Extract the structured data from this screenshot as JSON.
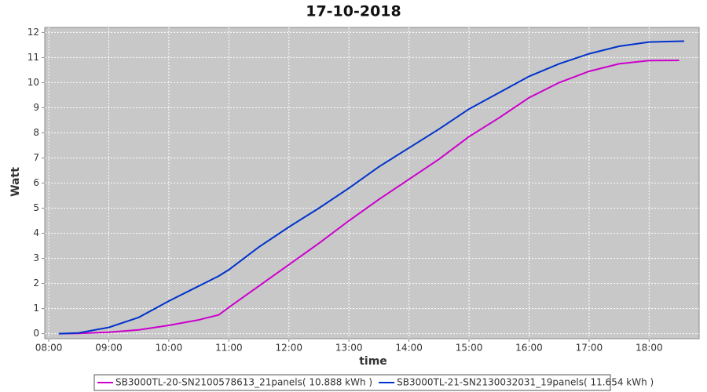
{
  "chart_data": {
    "type": "line",
    "title": "17-10-2018",
    "x_label": "time",
    "y_label": "Watt",
    "x": [
      "08:10",
      "08:30",
      "09:00",
      "09:30",
      "10:00",
      "10:30",
      "10:50",
      "11:00",
      "11:30",
      "12:00",
      "12:30",
      "13:00",
      "13:30",
      "14:00",
      "14:30",
      "15:00",
      "15:30",
      "16:00",
      "16:30",
      "17:00",
      "17:30",
      "18:00",
      "18:30",
      "18:35"
    ],
    "series": [
      {
        "name": "SB3000TL-20-SN2100578613_21panels( 10.888 kWh )",
        "color": "#cc00cc",
        "values": [
          0,
          0.01,
          0.06,
          0.15,
          0.33,
          0.55,
          0.75,
          1.05,
          1.9,
          2.75,
          3.6,
          4.5,
          5.35,
          6.15,
          6.95,
          7.85,
          8.6,
          9.4,
          10.0,
          10.45,
          10.75,
          10.88,
          10.888,
          null
        ]
      },
      {
        "name": "SB3000TL-21-SN2130032031_19panels( 11.654 kWh )",
        "color": "#0033cc",
        "values": [
          0,
          0.03,
          0.25,
          0.65,
          1.3,
          1.9,
          2.3,
          2.55,
          3.45,
          4.25,
          5.0,
          5.8,
          6.65,
          7.4,
          8.15,
          8.95,
          9.6,
          10.25,
          10.75,
          11.15,
          11.45,
          11.62,
          11.65,
          11.654
        ]
      }
    ],
    "xlim": [
      "07:56",
      "18:50"
    ],
    "xticks": [
      "08:00",
      "09:00",
      "10:00",
      "11:00",
      "12:00",
      "13:00",
      "14:00",
      "15:00",
      "16:00",
      "17:00",
      "18:00"
    ],
    "ylim": [
      -0.2,
      12.2
    ],
    "yticks": [
      0,
      1,
      2,
      3,
      4,
      5,
      6,
      7,
      8,
      9,
      10,
      11,
      12
    ],
    "grid": true,
    "legend": "bottom"
  }
}
